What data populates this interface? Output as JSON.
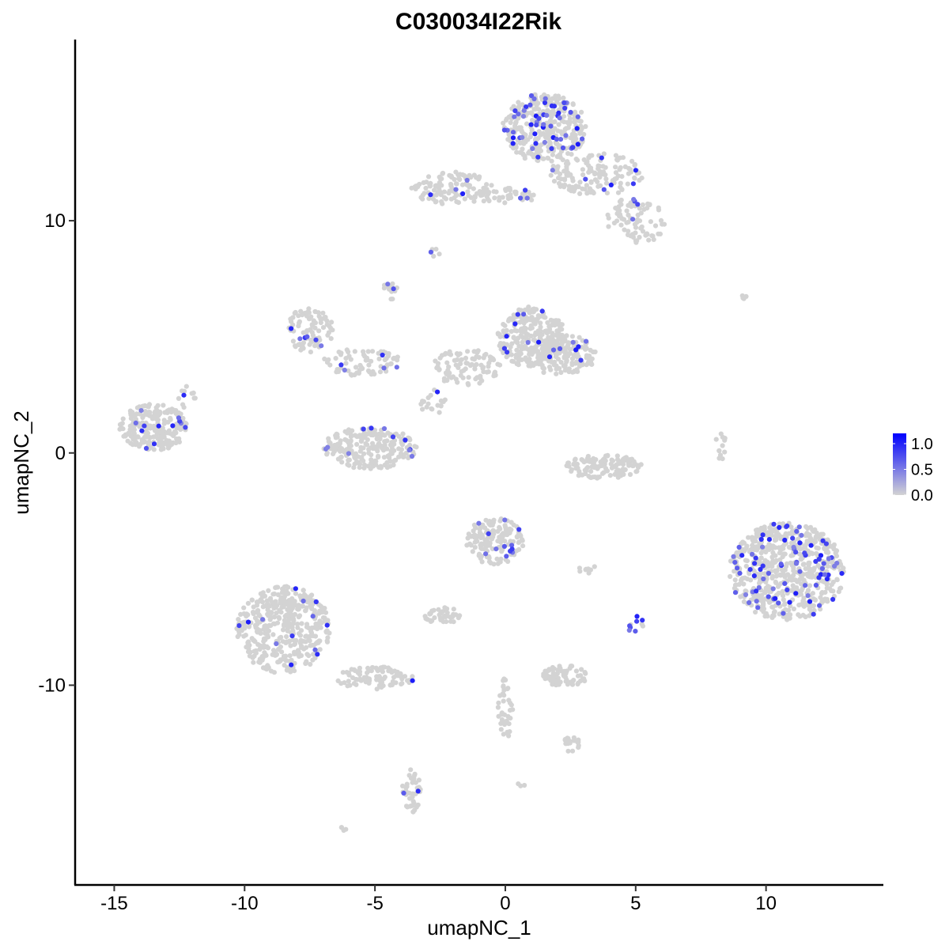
{
  "chart_data": {
    "type": "scatter",
    "title": "C030034I22Rik",
    "xlabel": "umapNC_1",
    "ylabel": "umapNC_2",
    "xlim": [
      -16.5,
      14.5
    ],
    "ylim": [
      -18.6,
      17.8
    ],
    "x_ticks": [
      {
        "value": -15,
        "label": "-15"
      },
      {
        "value": -10,
        "label": "-10"
      },
      {
        "value": -5,
        "label": "-5"
      },
      {
        "value": 0,
        "label": "0"
      },
      {
        "value": 5,
        "label": "5"
      },
      {
        "value": 10,
        "label": "10"
      }
    ],
    "y_ticks": [
      {
        "value": -10,
        "label": "-10"
      },
      {
        "value": 0,
        "label": "0"
      },
      {
        "value": 10,
        "label": "10"
      }
    ],
    "grid": false,
    "legend": {
      "placement": "right",
      "low_color": "#d3d3d3",
      "high_color": "#0000ff",
      "min": 0,
      "max": 1.2,
      "ticks": [
        {
          "value": 1.0,
          "label": "1.0"
        },
        {
          "value": 0.5,
          "label": "0.5"
        },
        {
          "value": 0.0,
          "label": "0.0"
        }
      ]
    },
    "clusters": [
      {
        "cx": 1.5,
        "cy": 14.0,
        "rx": 1.6,
        "ry": 1.5,
        "n": 380,
        "expr_rate": 0.12
      },
      {
        "cx": 3.5,
        "cy": 12.0,
        "rx": 1.8,
        "ry": 0.9,
        "n": 140,
        "expr_rate": 0.07
      },
      {
        "cx": 5.0,
        "cy": 10.0,
        "rx": 1.2,
        "ry": 1.0,
        "n": 80,
        "expr_rate": 0.05
      },
      {
        "cx": -2.0,
        "cy": 11.4,
        "rx": 1.6,
        "ry": 0.7,
        "n": 110,
        "expr_rate": 0.07
      },
      {
        "cx": 0.0,
        "cy": 11.1,
        "rx": 1.3,
        "ry": 0.35,
        "n": 45,
        "expr_rate": 0.15
      },
      {
        "cx": 1.0,
        "cy": 5.0,
        "rx": 1.3,
        "ry": 1.3,
        "n": 260,
        "expr_rate": 0.04
      },
      {
        "cx": 2.2,
        "cy": 4.2,
        "rx": 1.3,
        "ry": 0.9,
        "n": 150,
        "expr_rate": 0.03
      },
      {
        "cx": -1.5,
        "cy": 3.7,
        "rx": 1.3,
        "ry": 0.8,
        "n": 90,
        "expr_rate": 0.01
      },
      {
        "cx": -7.5,
        "cy": 5.3,
        "rx": 0.9,
        "ry": 1.0,
        "n": 90,
        "expr_rate": 0.05
      },
      {
        "cx": -5.5,
        "cy": 3.9,
        "rx": 1.5,
        "ry": 0.6,
        "n": 70,
        "expr_rate": 0.04
      },
      {
        "cx": -5.2,
        "cy": 0.2,
        "rx": 1.8,
        "ry": 0.9,
        "n": 230,
        "expr_rate": 0.05
      },
      {
        "cx": -13.5,
        "cy": 1.1,
        "rx": 1.3,
        "ry": 1.0,
        "n": 240,
        "expr_rate": 0.03
      },
      {
        "cx": 3.8,
        "cy": -0.6,
        "rx": 1.5,
        "ry": 0.5,
        "n": 130,
        "expr_rate": 0.0
      },
      {
        "cx": 10.8,
        "cy": -5.1,
        "rx": 2.2,
        "ry": 2.1,
        "n": 650,
        "expr_rate": 0.13
      },
      {
        "cx": -0.4,
        "cy": -3.8,
        "rx": 1.1,
        "ry": 1.0,
        "n": 150,
        "expr_rate": 0.07
      },
      {
        "cx": -8.5,
        "cy": -7.6,
        "rx": 1.8,
        "ry": 1.9,
        "n": 430,
        "expr_rate": 0.03
      },
      {
        "cx": -5.0,
        "cy": -9.7,
        "rx": 1.5,
        "ry": 0.5,
        "n": 90,
        "expr_rate": 0.03
      },
      {
        "cx": 2.3,
        "cy": -9.6,
        "rx": 0.9,
        "ry": 0.45,
        "n": 70,
        "expr_rate": 0.0
      },
      {
        "cx": -2.4,
        "cy": -7.0,
        "rx": 0.7,
        "ry": 0.35,
        "n": 40,
        "expr_rate": 0.0
      },
      {
        "cx": -3.6,
        "cy": -14.5,
        "rx": 0.35,
        "ry": 1.0,
        "n": 40,
        "expr_rate": 0.03
      },
      {
        "cx": 0.0,
        "cy": -11.0,
        "rx": 0.3,
        "ry": 1.3,
        "n": 40,
        "expr_rate": 0.03
      },
      {
        "cx": 2.5,
        "cy": -12.5,
        "rx": 0.4,
        "ry": 0.35,
        "n": 20,
        "expr_rate": 0.0
      },
      {
        "cx": 8.2,
        "cy": 0.3,
        "rx": 0.25,
        "ry": 1.0,
        "n": 12,
        "expr_rate": 0.0
      },
      {
        "cx": 5.0,
        "cy": -7.4,
        "rx": 0.3,
        "ry": 0.4,
        "n": 10,
        "expr_rate": 0.3
      },
      {
        "cx": 3.2,
        "cy": -5.0,
        "rx": 0.4,
        "ry": 0.2,
        "n": 8,
        "expr_rate": 0.0
      },
      {
        "cx": -4.4,
        "cy": 7.0,
        "rx": 0.3,
        "ry": 0.5,
        "n": 14,
        "expr_rate": 0.2
      },
      {
        "cx": -2.7,
        "cy": 8.6,
        "rx": 0.2,
        "ry": 0.2,
        "n": 6,
        "expr_rate": 0.2
      },
      {
        "cx": -12.2,
        "cy": 2.4,
        "rx": 0.4,
        "ry": 0.5,
        "n": 12,
        "expr_rate": 0.1
      },
      {
        "cx": 9.3,
        "cy": 6.7,
        "rx": 0.3,
        "ry": 0.1,
        "n": 4,
        "expr_rate": 0.0
      },
      {
        "cx": -2.8,
        "cy": 2.2,
        "rx": 0.5,
        "ry": 0.6,
        "n": 20,
        "expr_rate": 0.05
      },
      {
        "cx": -6.2,
        "cy": -16.2,
        "rx": 0.2,
        "ry": 0.1,
        "n": 4,
        "expr_rate": 0.0
      },
      {
        "cx": 0.6,
        "cy": -14.3,
        "rx": 0.2,
        "ry": 0.1,
        "n": 3,
        "expr_rate": 0.0
      }
    ]
  }
}
